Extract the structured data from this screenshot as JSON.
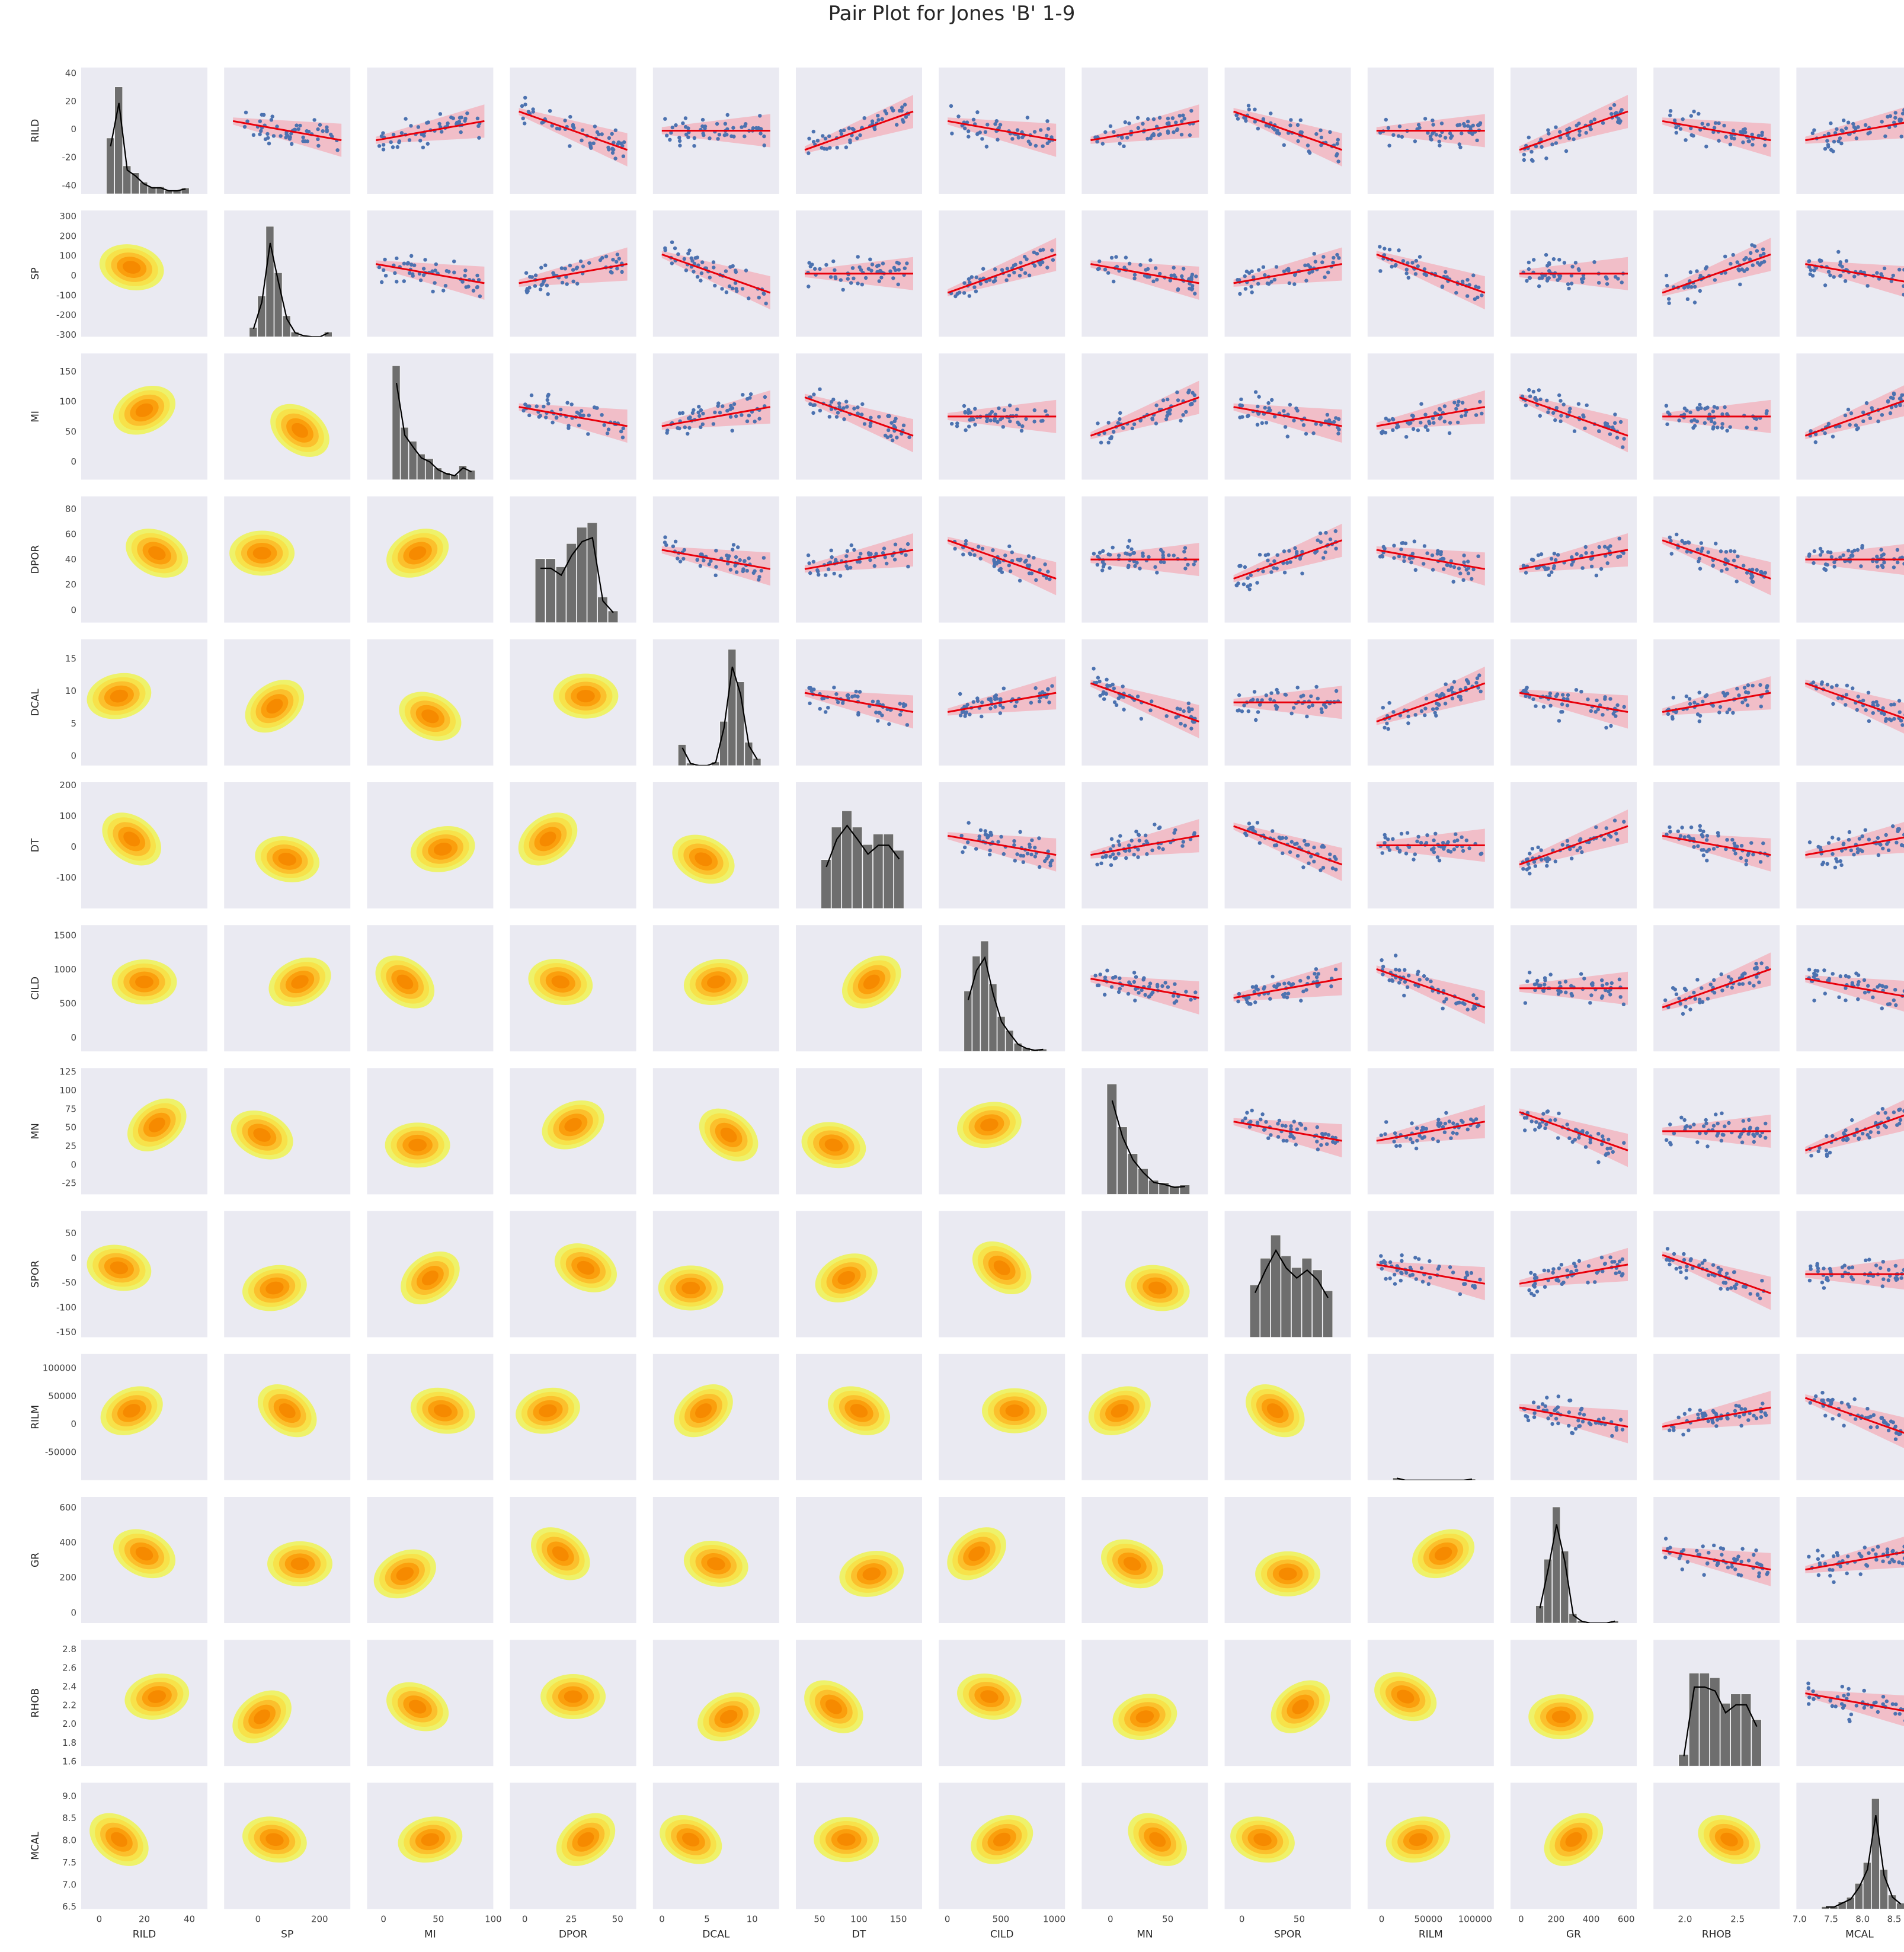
{
  "chart_data": {
    "type": "scatter",
    "title": "Pair Plot for Jones 'B' 1-9",
    "upper_triangle": "scatter with linear regression line and confidence band",
    "lower_triangle": "kernel density contours (yellow to orange)",
    "diagonal": "histogram with KDE curve",
    "grid": false,
    "colors": {
      "panel": "#eaeaf2",
      "points": "#4c72b0",
      "regression": "#e8000b",
      "band": "#f4a6b0",
      "kde_levels": [
        "#eef26a",
        "#f7e24a",
        "#fbc02d",
        "#fb9f0d",
        "#f68a00"
      ],
      "histogram": "#6e6e6e"
    },
    "variables": [
      {
        "name": "RILD",
        "range": [
          -46,
          44
        ],
        "ticks": [
          -40,
          -20,
          0,
          20,
          40
        ],
        "y_ticks": [
          "-40",
          "-20",
          "0",
          "20",
          "40"
        ],
        "x_ticks": [
          "0",
          "20",
          "40"
        ],
        "x_tick_values": [
          0,
          20,
          40
        ],
        "x_range": [
          -8,
          48
        ]
      },
      {
        "name": "SP",
        "range": [
          -310,
          330
        ],
        "ticks": [
          -300,
          -200,
          -100,
          0,
          100,
          200,
          300
        ],
        "y_ticks": [
          "-300",
          "-200",
          "-100",
          "0",
          "100",
          "200",
          "300"
        ],
        "x_ticks": [
          "0",
          "200"
        ],
        "x_tick_values": [
          0,
          200
        ],
        "x_range": [
          -110,
          300
        ]
      },
      {
        "name": "MI",
        "range": [
          -30,
          180
        ],
        "ticks": [
          0,
          50,
          100,
          150
        ],
        "y_ticks": [
          "0",
          "50",
          "100",
          "150"
        ],
        "x_ticks": [
          "0",
          "50",
          "100"
        ],
        "x_tick_values": [
          0,
          50,
          100
        ],
        "x_range": [
          -15,
          100
        ]
      },
      {
        "name": "DPOR",
        "range": [
          -10,
          90
        ],
        "ticks": [
          0,
          20,
          40,
          60,
          80
        ],
        "y_ticks": [
          "0",
          "20",
          "40",
          "60",
          "80"
        ],
        "x_ticks": [
          "0",
          "25",
          "50"
        ],
        "x_tick_values": [
          0,
          25,
          50
        ],
        "x_range": [
          -8,
          60
        ]
      },
      {
        "name": "DCAL",
        "range": [
          -1.5,
          18
        ],
        "ticks": [
          0,
          5,
          10,
          15
        ],
        "y_ticks": [
          "0",
          "5",
          "10",
          "15"
        ],
        "x_ticks": [
          "0",
          "5",
          "10"
        ],
        "x_tick_values": [
          0,
          5,
          10
        ],
        "x_range": [
          -1,
          13
        ]
      },
      {
        "name": "DT",
        "range": [
          -200,
          210
        ],
        "ticks": [
          -100,
          0,
          100,
          200
        ],
        "y_ticks": [
          "-100",
          "0",
          "100",
          "200"
        ],
        "x_ticks": [
          "50",
          "100",
          "150"
        ],
        "x_tick_values": [
          50,
          100,
          150
        ],
        "x_range": [
          20,
          180
        ]
      },
      {
        "name": "CILD",
        "range": [
          -200,
          1650
        ],
        "ticks": [
          0,
          500,
          1000,
          1500
        ],
        "y_ticks": [
          "0",
          "500",
          "1000",
          "1500"
        ],
        "x_ticks": [
          "0",
          "500",
          "1000"
        ],
        "x_tick_values": [
          0,
          500,
          1000
        ],
        "x_range": [
          -80,
          1100
        ]
      },
      {
        "name": "MN",
        "range": [
          -40,
          130
        ],
        "ticks": [
          -25,
          0,
          25,
          50,
          75,
          100,
          125
        ],
        "y_ticks": [
          "-25",
          "0",
          "25",
          "50",
          "75",
          "100",
          "125"
        ],
        "x_ticks": [
          "0",
          "50"
        ],
        "x_tick_values": [
          0,
          50
        ],
        "x_range": [
          -25,
          85
        ]
      },
      {
        "name": "SPOR",
        "range": [
          -160,
          95
        ],
        "ticks": [
          -150,
          -100,
          -50,
          0,
          50
        ],
        "y_ticks": [
          "-150",
          "-100",
          "-50",
          "0",
          "50"
        ],
        "x_ticks": [
          "0",
          "50"
        ],
        "x_tick_values": [
          0,
          50
        ],
        "x_range": [
          -15,
          95
        ]
      },
      {
        "name": "RILM",
        "range": [
          -100000,
          125000
        ],
        "ticks": [
          -50000,
          0,
          50000,
          100000
        ],
        "y_ticks": [
          "-50000",
          "0",
          "50000",
          "100000"
        ],
        "x_ticks": [
          "0",
          "50000",
          "100000"
        ],
        "x_tick_values": [
          0,
          50000,
          100000
        ],
        "x_range": [
          -15000,
          120000
        ]
      },
      {
        "name": "GR",
        "range": [
          -60,
          660
        ],
        "ticks": [
          0,
          200,
          400,
          600
        ],
        "y_ticks": [
          "0",
          "200",
          "400",
          "600"
        ],
        "x_ticks": [
          "0",
          "200",
          "400",
          "600"
        ],
        "x_tick_values": [
          0,
          200,
          400,
          600
        ],
        "x_range": [
          -60,
          660
        ]
      },
      {
        "name": "RHOB",
        "range": [
          1.55,
          2.9
        ],
        "ticks": [
          1.6,
          1.8,
          2.0,
          2.2,
          2.4,
          2.6,
          2.8
        ],
        "y_ticks": [
          "1.6",
          "1.8",
          "2.0",
          "2.2",
          "2.4",
          "2.6",
          "2.8"
        ],
        "x_ticks": [
          "2.0",
          "2.5"
        ],
        "x_tick_values": [
          2.0,
          2.5
        ],
        "x_range": [
          1.7,
          2.9
        ]
      },
      {
        "name": "MCAL",
        "range": [
          6.45,
          9.3
        ],
        "ticks": [
          6.5,
          7.0,
          7.5,
          8.0,
          8.5,
          9.0
        ],
        "y_ticks": [
          "6.5",
          "7.0",
          "7.5",
          "8.0",
          "8.5",
          "9.0"
        ],
        "x_ticks": [
          "7.0",
          "7.5",
          "8.0",
          "8.5"
        ],
        "x_tick_values": [
          7.0,
          7.5,
          8.0,
          8.5
        ],
        "x_range": [
          6.95,
          8.95
        ]
      }
    ],
    "histograms": {
      "RILD": [
        0.48,
        0.92,
        0.24,
        0.18,
        0.1,
        0.06,
        0.06,
        0.03,
        0.03,
        0.05
      ],
      "SP": [
        0.08,
        0.35,
        0.95,
        0.55,
        0.18,
        0.04,
        0.01,
        0.0,
        0.0,
        0.04
      ],
      "MI": [
        0.98,
        0.45,
        0.33,
        0.22,
        0.18,
        0.1,
        0.06,
        0.04,
        0.12,
        0.08
      ],
      "DPOR": [
        0.55,
        0.55,
        0.48,
        0.68,
        0.82,
        0.86,
        0.22,
        0.1
      ],
      "DCAL": [
        0.18,
        0.02,
        0.0,
        0.0,
        0.03,
        0.38,
        1.0,
        0.72,
        0.2,
        0.06
      ],
      "DT": [
        0.42,
        0.7,
        0.84,
        0.7,
        0.55,
        0.64,
        0.64,
        0.5
      ],
      "CILD": [
        0.52,
        0.82,
        0.95,
        0.58,
        0.3,
        0.18,
        0.07,
        0.03,
        0.01,
        0.02
      ],
      "MN": [
        0.95,
        0.58,
        0.35,
        0.22,
        0.12,
        0.1,
        0.07,
        0.08
      ],
      "SPOR": [
        0.45,
        0.68,
        0.88,
        0.7,
        0.6,
        0.68,
        0.58,
        0.4
      ],
      "RILM": [
        0.02,
        0.0,
        0.0,
        0.0,
        0.0,
        0.0,
        0.0,
        0.0,
        0.0,
        0.01
      ],
      "GR": [
        0.15,
        0.55,
        1.0,
        0.62,
        0.08,
        0.02,
        0.0,
        0.0,
        0.0,
        0.02
      ],
      "RHOB": [
        0.1,
        0.8,
        0.8,
        0.76,
        0.54,
        0.62,
        0.62,
        0.4
      ],
      "MCAL": [
        0.02,
        0.02,
        0.06,
        0.1,
        0.22,
        0.4,
        0.95,
        0.34,
        0.12,
        0.05
      ]
    }
  }
}
